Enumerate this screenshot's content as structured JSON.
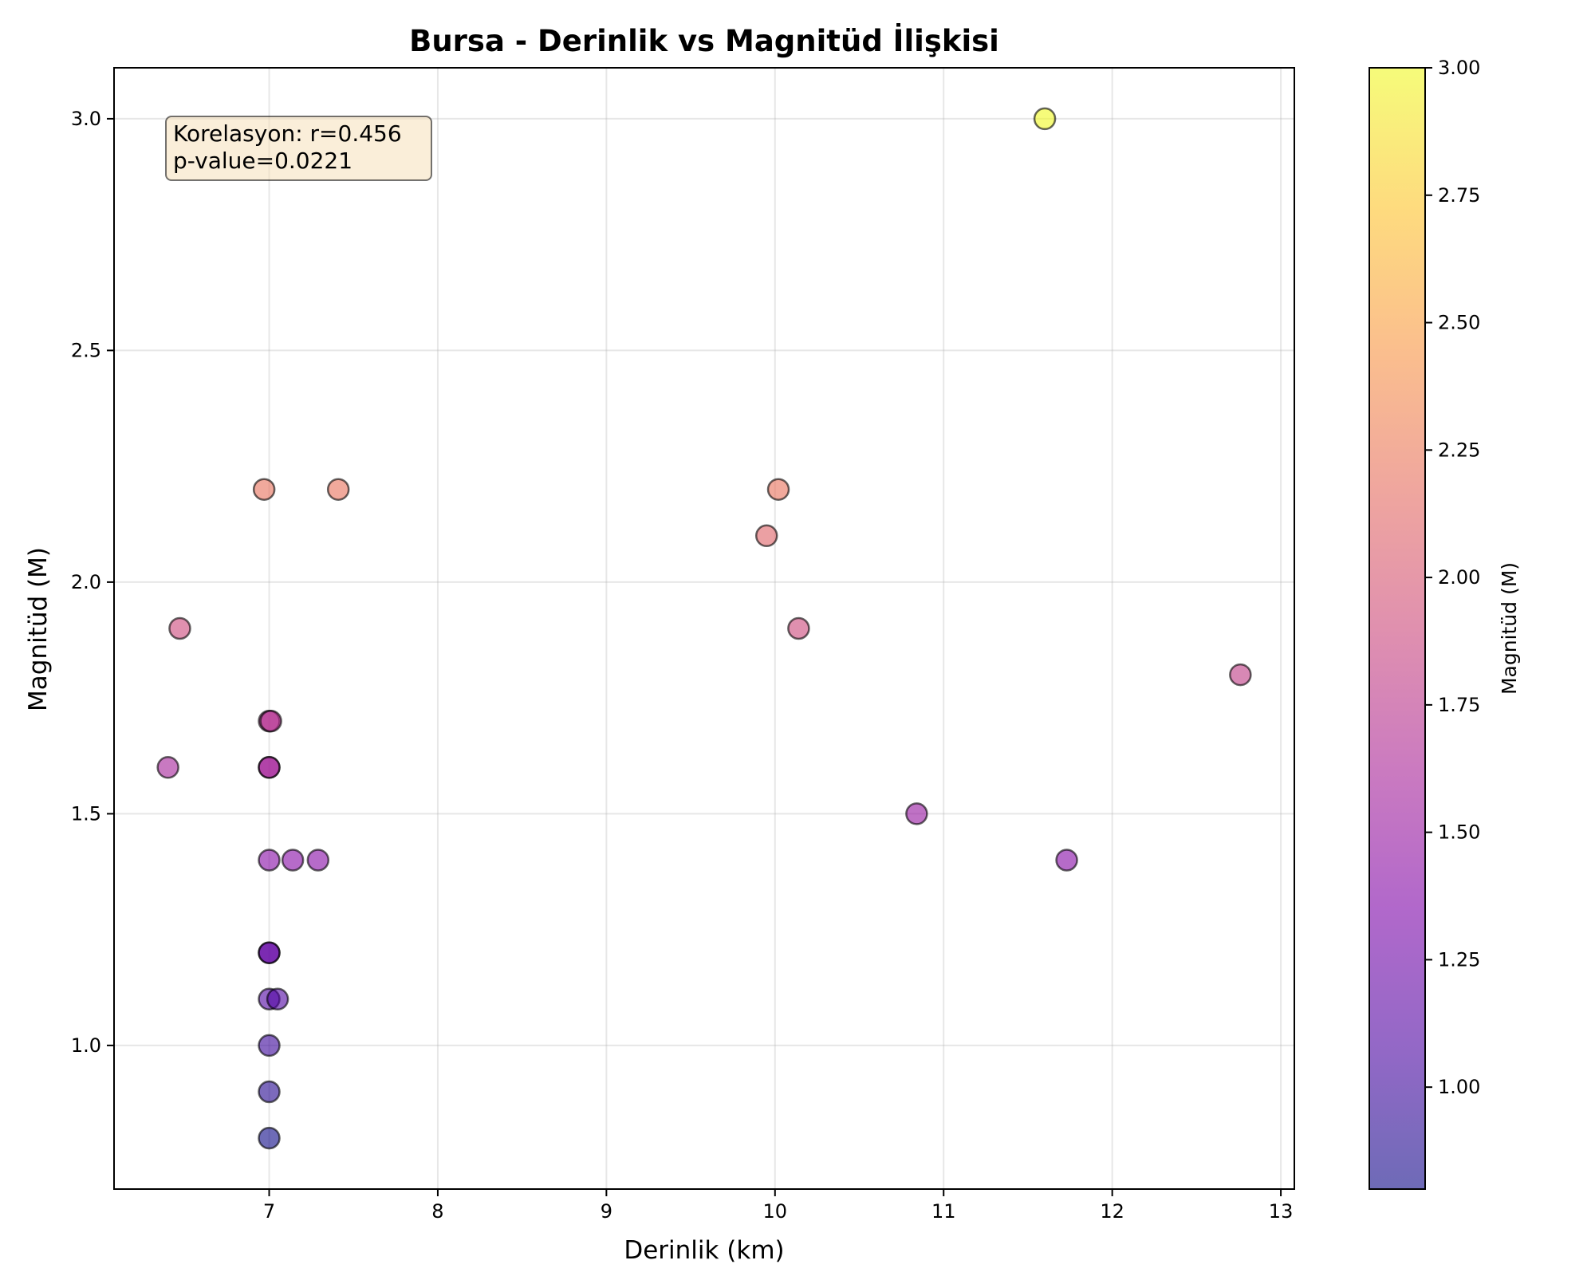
{
  "chart_data": {
    "type": "scatter",
    "title": "Bursa - Derinlik vs Magnitüd İlişkisi",
    "xlabel": "Derinlik (km)",
    "ylabel": "Magnitüd (M)",
    "xlim": [
      6.08,
      13.08
    ],
    "ylim": [
      0.69,
      3.11
    ],
    "xticks": [
      7,
      8,
      9,
      10,
      11,
      12,
      13
    ],
    "yticks": [
      1.0,
      1.5,
      2.0,
      2.5,
      3.0
    ],
    "xtick_labels": [
      "7",
      "8",
      "9",
      "10",
      "11",
      "12",
      "13"
    ],
    "ytick_labels": [
      "1.0",
      "1.5",
      "2.0",
      "2.5",
      "3.0"
    ],
    "grid": true,
    "colormap": "plasma",
    "marker_alpha": 0.6,
    "colorbar": {
      "label": "Magnitüd (M)",
      "range": [
        0.8,
        3.0
      ],
      "ticks": [
        1.0,
        1.25,
        1.5,
        1.75,
        2.0,
        2.25,
        2.5,
        2.75,
        3.0
      ],
      "tick_labels": [
        "1.00",
        "1.25",
        "1.50",
        "1.75",
        "2.00",
        "2.25",
        "2.50",
        "2.75",
        "3.00"
      ]
    },
    "annotation": {
      "line1": "Korelasyon: r=0.456",
      "line2": "p-value=0.0221",
      "background": "#f5deb3",
      "placement": "top-left"
    },
    "points": [
      {
        "x": 11.6,
        "y": 3.0
      },
      {
        "x": 6.97,
        "y": 2.2
      },
      {
        "x": 7.41,
        "y": 2.2
      },
      {
        "x": 10.02,
        "y": 2.2
      },
      {
        "x": 9.95,
        "y": 2.1
      },
      {
        "x": 6.47,
        "y": 1.9
      },
      {
        "x": 10.14,
        "y": 1.9
      },
      {
        "x": 12.76,
        "y": 1.8
      },
      {
        "x": 7.0,
        "y": 1.7
      },
      {
        "x": 7.01,
        "y": 1.7
      },
      {
        "x": 6.4,
        "y": 1.6
      },
      {
        "x": 7.0,
        "y": 1.6
      },
      {
        "x": 7.0,
        "y": 1.6
      },
      {
        "x": 10.84,
        "y": 1.5
      },
      {
        "x": 7.0,
        "y": 1.4
      },
      {
        "x": 7.14,
        "y": 1.4
      },
      {
        "x": 7.29,
        "y": 1.4
      },
      {
        "x": 11.73,
        "y": 1.4
      },
      {
        "x": 7.0,
        "y": 1.2
      },
      {
        "x": 7.0,
        "y": 1.2
      },
      {
        "x": 7.0,
        "y": 1.1
      },
      {
        "x": 7.05,
        "y": 1.1
      },
      {
        "x": 7.0,
        "y": 1.0
      },
      {
        "x": 7.0,
        "y": 0.9
      },
      {
        "x": 7.0,
        "y": 0.8
      }
    ]
  }
}
